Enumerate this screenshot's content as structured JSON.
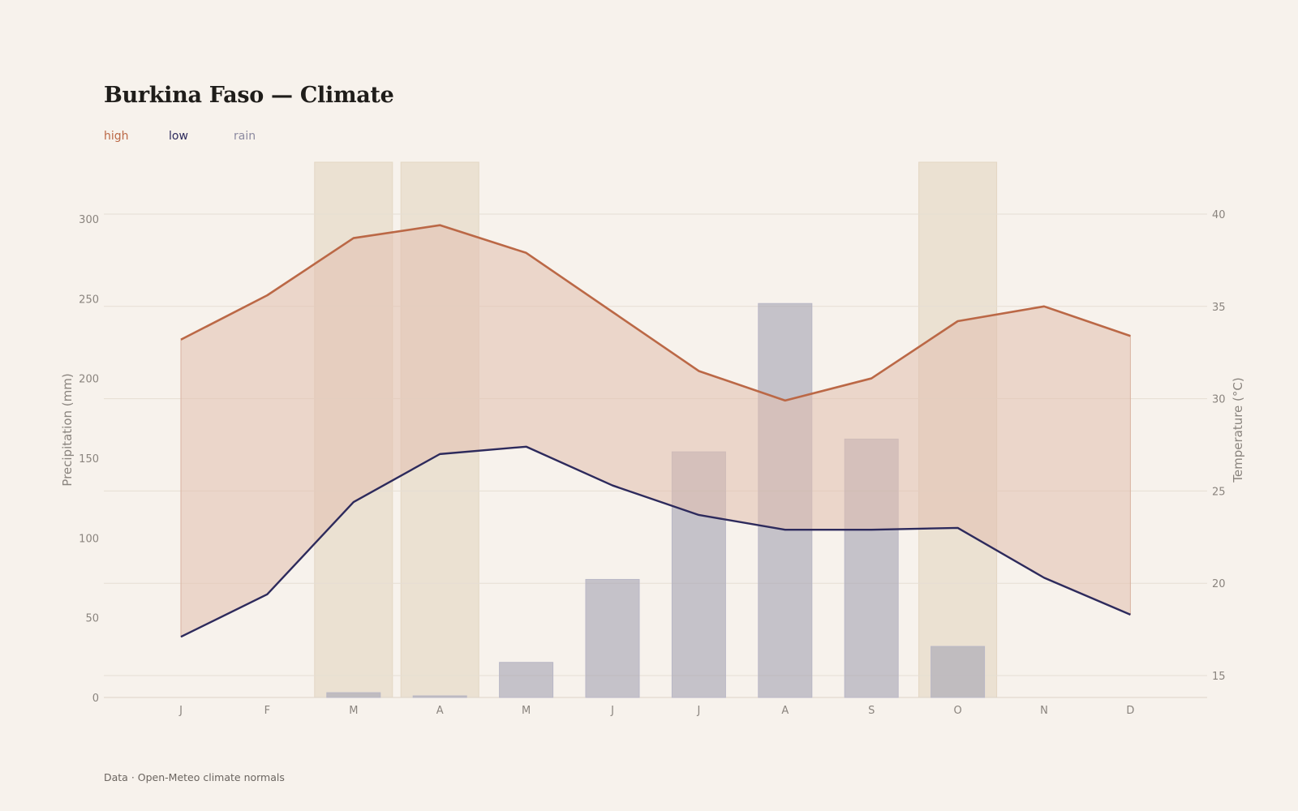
{
  "title": "Burkina Faso — Climate",
  "legend": {
    "high": "high",
    "low": "low",
    "rain": "rain"
  },
  "source": "Data · Open-Meteo climate normals",
  "colors": {
    "high": "#bb6846",
    "low": "#2d2a5c",
    "rain": "#a7a5b3",
    "band": "#e1bfae",
    "highlight": "#ebe1d2",
    "background": "#f7f2ec"
  },
  "chart_data": {
    "type": "bar",
    "categories": [
      "J",
      "F",
      "M",
      "A",
      "M",
      "J",
      "J",
      "A",
      "S",
      "O",
      "N",
      "D"
    ],
    "highlighted_months": [
      2,
      3,
      9
    ],
    "series": [
      {
        "name": "rain",
        "axis": "left",
        "type": "bar",
        "values": [
          0,
          0,
          3,
          1,
          22,
          74,
          154,
          247,
          162,
          32,
          0,
          0
        ]
      },
      {
        "name": "high",
        "axis": "right",
        "type": "line",
        "values": [
          33.2,
          35.6,
          38.7,
          39.4,
          37.9,
          34.7,
          31.5,
          29.9,
          31.1,
          34.2,
          35.0,
          33.4
        ]
      },
      {
        "name": "low",
        "axis": "right",
        "type": "line",
        "values": [
          17.1,
          19.4,
          24.4,
          27.0,
          27.4,
          25.3,
          23.7,
          22.9,
          22.9,
          23.0,
          20.3,
          18.3
        ]
      }
    ],
    "y_left": {
      "label": "Precipitation (mm)",
      "ticks": [
        0,
        50,
        100,
        150,
        200,
        250,
        300
      ],
      "range": [
        0,
        300
      ]
    },
    "y_right": {
      "label": "Temperature (°C)",
      "ticks": [
        15,
        20,
        25,
        30,
        35,
        40
      ],
      "range": [
        15,
        40
      ]
    },
    "grid": true
  }
}
